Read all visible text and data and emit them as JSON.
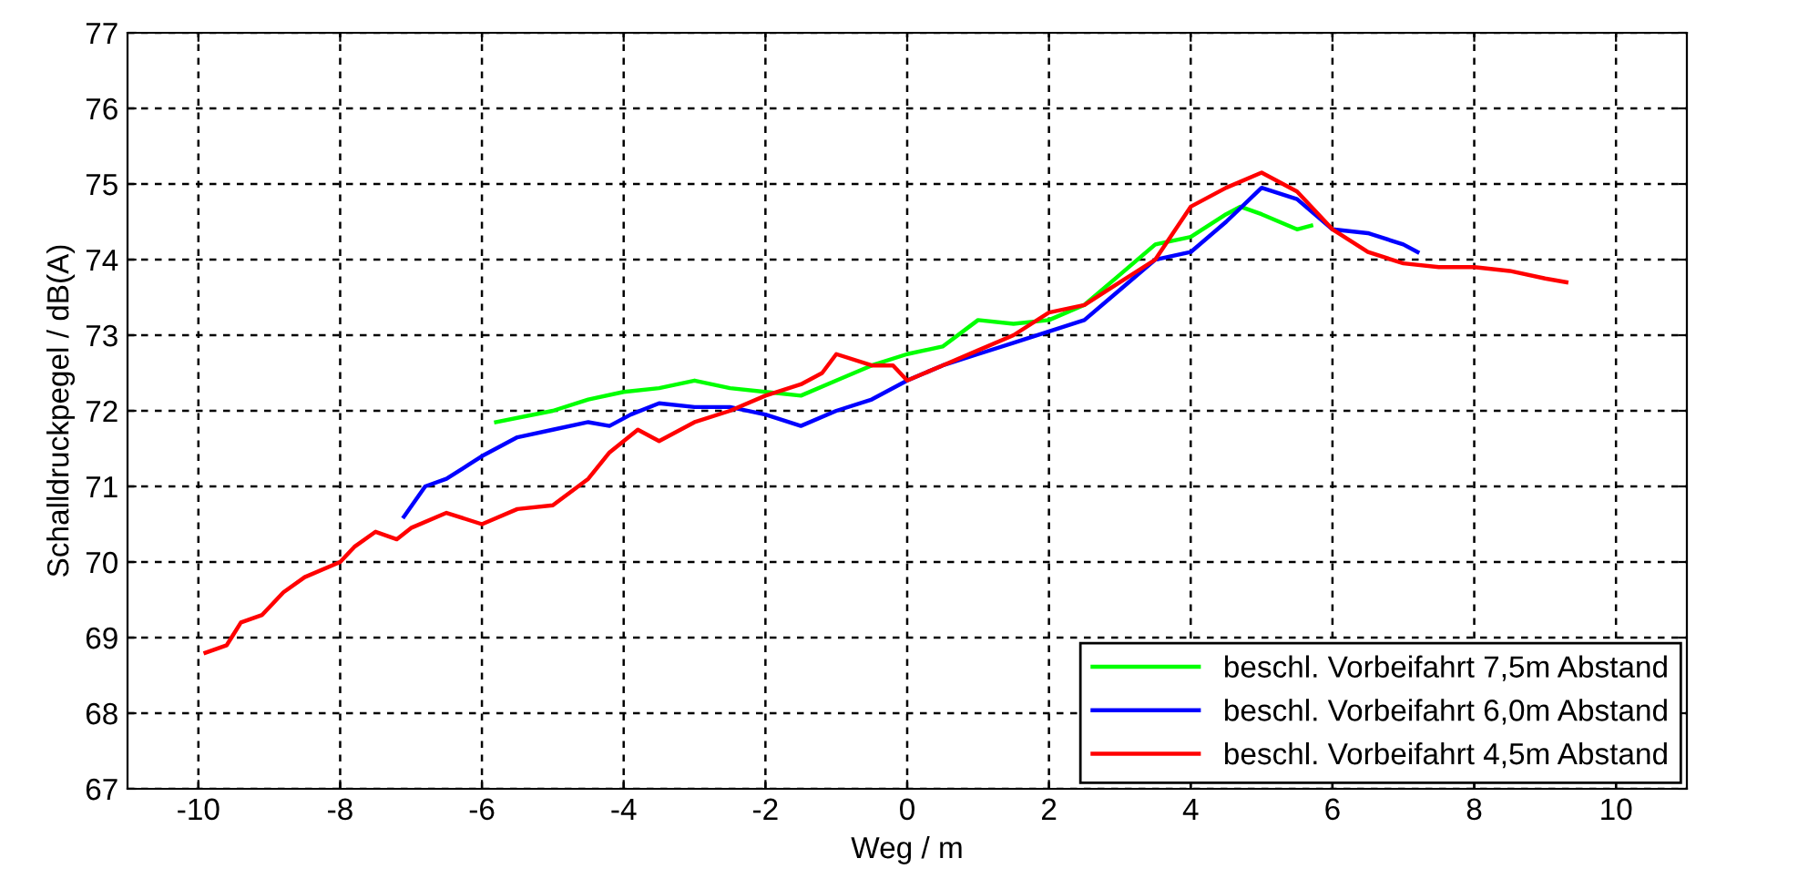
{
  "chart_data": {
    "type": "line",
    "xlabel": "Weg / m",
    "ylabel": "Schalldruckpegel / dB(A)",
    "xlim": [
      -11,
      11
    ],
    "ylim": [
      67,
      77
    ],
    "xticks": [
      -10,
      -8,
      -6,
      -4,
      -2,
      0,
      2,
      4,
      6,
      8,
      10
    ],
    "yticks": [
      67,
      68,
      69,
      70,
      71,
      72,
      73,
      74,
      75,
      76,
      77
    ],
    "grid": true,
    "legend": "bottom right",
    "line_style": "solid",
    "marker": "none",
    "series": [
      {
        "name": "beschl. Vorbeifahrt 7,5m Abstand",
        "color": "#00ff00",
        "x": [
          -5.8,
          -5,
          -4.5,
          -4,
          -3.5,
          -3,
          -2.5,
          -2,
          -1.5,
          -1,
          -0.5,
          0,
          0.5,
          1,
          1.5,
          2,
          2.5,
          3,
          3.5,
          4,
          4.5,
          4.7,
          5,
          5.5,
          5.7
        ],
        "values": [
          71.85,
          72.0,
          72.15,
          72.25,
          72.3,
          72.4,
          72.3,
          72.25,
          72.2,
          72.4,
          72.6,
          72.75,
          72.85,
          73.2,
          73.15,
          73.2,
          73.4,
          73.8,
          74.2,
          74.3,
          74.6,
          74.7,
          74.6,
          74.4,
          74.45
        ]
      },
      {
        "name": "beschl. Vorbeifahrt 6,0m Abstand",
        "color": "#0000ff",
        "x": [
          -7.1,
          -6.8,
          -6.5,
          -6,
          -5.5,
          -5,
          -4.5,
          -4.2,
          -3.9,
          -3.5,
          -3,
          -2.5,
          -2,
          -1.5,
          -1,
          -0.5,
          0,
          0.5,
          1,
          1.5,
          2,
          2.5,
          3,
          3.5,
          4,
          4.5,
          5,
          5.5,
          6,
          6.5,
          7,
          7.2
        ],
        "values": [
          70.6,
          71.0,
          71.1,
          71.4,
          71.65,
          71.75,
          71.85,
          71.8,
          71.95,
          72.1,
          72.05,
          72.05,
          71.95,
          71.8,
          72.0,
          72.15,
          72.4,
          72.6,
          72.75,
          72.9,
          73.05,
          73.2,
          73.6,
          74.0,
          74.1,
          74.5,
          74.95,
          74.8,
          74.4,
          74.35,
          74.2,
          74.1
        ]
      },
      {
        "name": "beschl. Vorbeifahrt 4,5m Abstand",
        "color": "#ff0000",
        "x": [
          -9.9,
          -9.6,
          -9.4,
          -9.1,
          -8.8,
          -8.5,
          -8,
          -7.8,
          -7.5,
          -7.2,
          -7,
          -6.5,
          -6,
          -5.5,
          -5,
          -4.5,
          -4.2,
          -3.8,
          -3.5,
          -3,
          -2.5,
          -2,
          -1.5,
          -1.2,
          -1,
          -0.5,
          -0.2,
          0,
          0.5,
          1,
          1.5,
          2,
          2.5,
          3,
          3.5,
          4,
          4.5,
          5,
          5.5,
          6,
          6.5,
          7,
          7.5,
          8,
          8.5,
          9,
          9.3
        ],
        "values": [
          68.8,
          68.9,
          69.2,
          69.3,
          69.6,
          69.8,
          70.0,
          70.2,
          70.4,
          70.3,
          70.45,
          70.65,
          70.5,
          70.7,
          70.75,
          71.1,
          71.45,
          71.75,
          71.6,
          71.85,
          72.0,
          72.2,
          72.35,
          72.5,
          72.75,
          72.6,
          72.6,
          72.4,
          72.6,
          72.8,
          73.0,
          73.3,
          73.4,
          73.7,
          74.0,
          74.7,
          74.95,
          75.15,
          74.9,
          74.4,
          74.1,
          73.95,
          73.9,
          73.9,
          73.85,
          73.75,
          73.7
        ]
      }
    ]
  }
}
